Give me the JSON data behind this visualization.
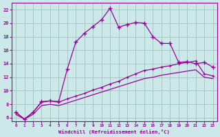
{
  "xlabel": "Windchill (Refroidissement éolien,°C)",
  "bg_color": "#cce8e8",
  "line_color": "#990099",
  "grid_color": "#99bbbb",
  "xlim": [
    -0.5,
    23.5
  ],
  "ylim": [
    5.5,
    23
  ],
  "yticks": [
    6,
    8,
    10,
    12,
    14,
    16,
    18,
    20,
    22
  ],
  "xticks": [
    0,
    1,
    2,
    3,
    4,
    5,
    6,
    7,
    8,
    9,
    10,
    11,
    12,
    13,
    14,
    15,
    16,
    17,
    18,
    19,
    20,
    21,
    22,
    23
  ],
  "line1_x": [
    0,
    1,
    2,
    3,
    4,
    5,
    6,
    7,
    8,
    9,
    10,
    11,
    12,
    13,
    14,
    15,
    16,
    17,
    18,
    19,
    20,
    21,
    22,
    23
  ],
  "line1_y": [
    6.8,
    5.8,
    6.8,
    8.4,
    8.5,
    8.4,
    13.2,
    17.2,
    18.5,
    19.5,
    20.5,
    22.2,
    19.4,
    19.8,
    20.1,
    20.0,
    18.0,
    17.0,
    17.0,
    14.2,
    14.3,
    14.0,
    14.2,
    13.5
  ],
  "line2_x": [
    0,
    1,
    2,
    3,
    4,
    5,
    6,
    7,
    8,
    9,
    10,
    11,
    12,
    13,
    14,
    15,
    16,
    17,
    18,
    19,
    20,
    21,
    22,
    23
  ],
  "line2_y": [
    6.8,
    5.8,
    6.8,
    8.3,
    8.5,
    8.3,
    8.8,
    9.2,
    9.6,
    10.1,
    10.5,
    11.0,
    11.4,
    12.0,
    12.5,
    13.0,
    13.2,
    13.5,
    13.7,
    14.0,
    14.2,
    14.4,
    12.5,
    12.2
  ],
  "line3_x": [
    0,
    1,
    2,
    3,
    4,
    5,
    6,
    7,
    8,
    9,
    10,
    11,
    12,
    13,
    14,
    15,
    16,
    17,
    18,
    19,
    20,
    21,
    22,
    23
  ],
  "line3_y": [
    6.5,
    5.8,
    6.5,
    7.8,
    8.0,
    7.8,
    8.2,
    8.6,
    9.0,
    9.4,
    9.8,
    10.2,
    10.6,
    11.0,
    11.4,
    11.8,
    12.0,
    12.3,
    12.5,
    12.7,
    12.9,
    13.1,
    12.0,
    11.8
  ]
}
